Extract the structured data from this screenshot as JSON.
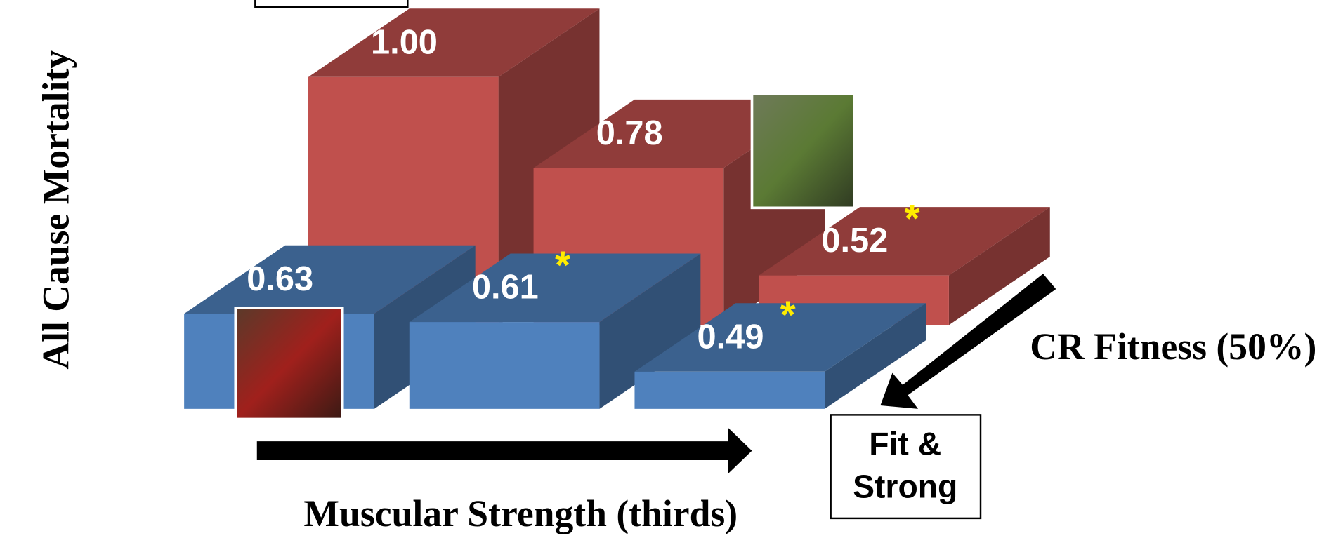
{
  "chart_data": {
    "type": "bar3d",
    "y_label": "All Cause Mortality",
    "x_label": "Muscular Strength (thirds)",
    "depth_label": "CR Fitness (50%)",
    "annotation_lines": [
      "Fit &",
      "Strong"
    ],
    "significance_marker": "*",
    "ylim": [
      0.4,
      1.0
    ],
    "series": [
      {
        "color": "#c0504d",
        "values": [
          1.0,
          0.78,
          0.52
        ],
        "value_labels": [
          "1.00",
          "0.78",
          "0.52"
        ],
        "significant": [
          false,
          false,
          true
        ]
      },
      {
        "color": "#4f81bd",
        "values": [
          0.63,
          0.61,
          0.49
        ],
        "value_labels": [
          "0.63",
          "0.61",
          "0.49"
        ],
        "significant": [
          false,
          true,
          true
        ]
      }
    ]
  }
}
